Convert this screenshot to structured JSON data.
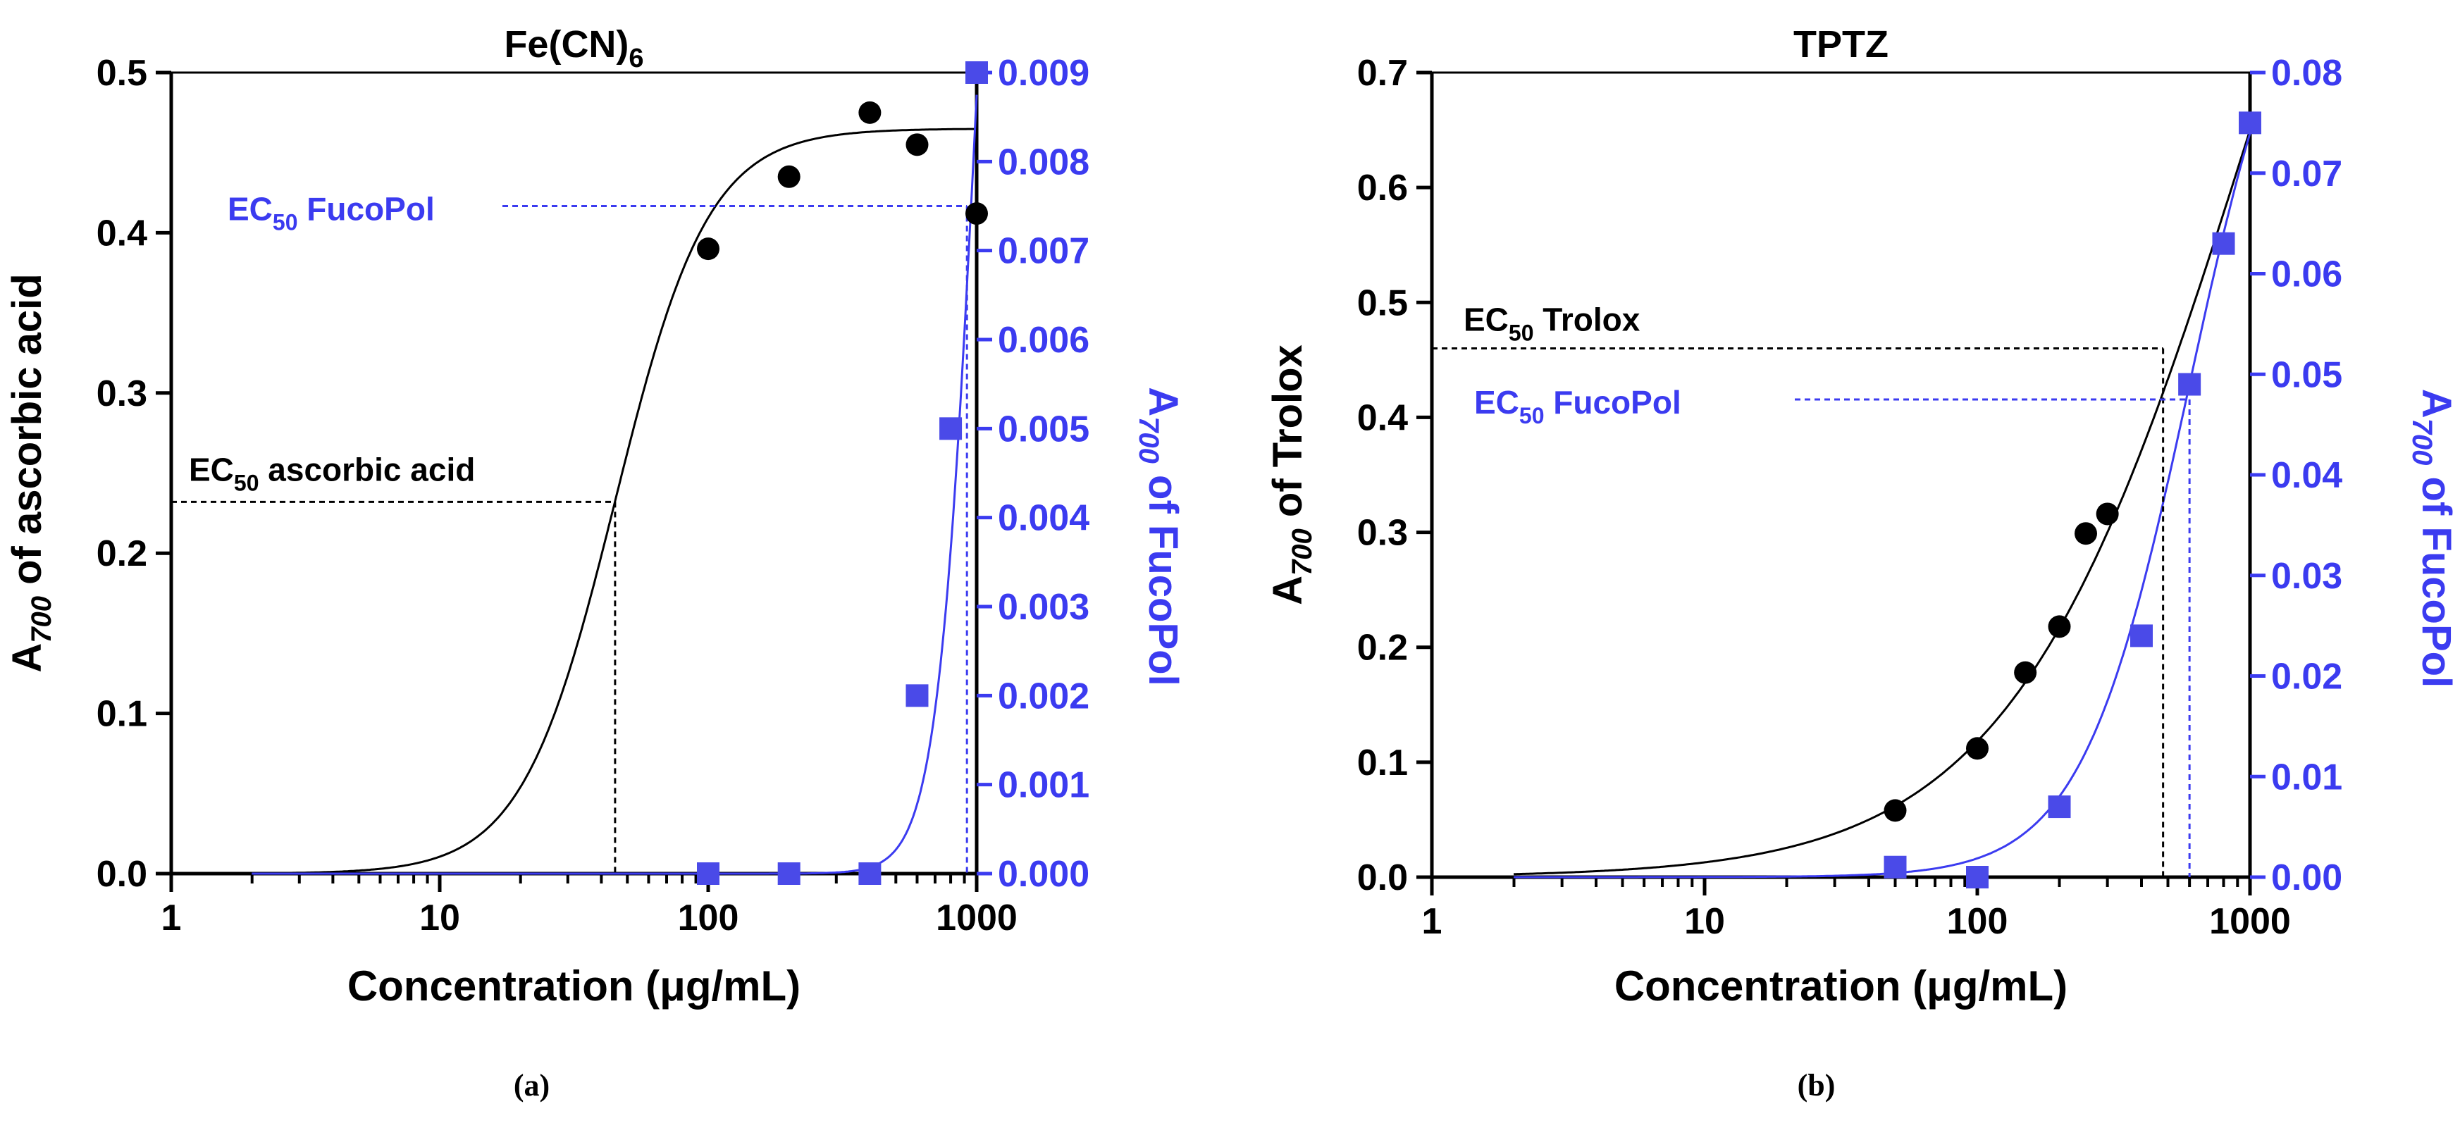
{
  "colors": {
    "primary": "#000000",
    "secondary": "#3b3bf0",
    "marker_secondary": "#4a4ae8"
  },
  "chart_data": [
    {
      "id": "a",
      "type": "scatter",
      "caption": "(a)",
      "title": "Fe(CN)",
      "title_sub": "6",
      "xlabel": "Concentration (μg/mL)",
      "xscale": "log",
      "xlim": [
        1,
        1000
      ],
      "xticks": [
        "1",
        "10",
        "100",
        "1000"
      ],
      "left_axis": {
        "label_main": "A",
        "label_sub": "700",
        "label_rest": " of ascorbic acid",
        "ylim": [
          0,
          0.5
        ],
        "ticks": [
          "0.0",
          "0.1",
          "0.2",
          "0.3",
          "0.4",
          "0.5"
        ]
      },
      "right_axis": {
        "label_main": "A",
        "label_sub": "700",
        "label_rest": " of FucoPol",
        "ylim": [
          0,
          0.009
        ],
        "ticks": [
          "0.000",
          "0.001",
          "0.002",
          "0.003",
          "0.004",
          "0.005",
          "0.006",
          "0.007",
          "0.008",
          "0.009"
        ]
      },
      "series": [
        {
          "name": "ascorbic acid",
          "axis": "left",
          "marker": "circle",
          "x": [
            100,
            200,
            400,
            600,
            1000
          ],
          "y": [
            0.39,
            0.435,
            0.475,
            0.455,
            0.412
          ],
          "fit": {
            "model": "logistic",
            "top": 0.465,
            "ec50": 45,
            "hill": 2.5
          }
        },
        {
          "name": "FucoPol",
          "axis": "right",
          "marker": "square",
          "x": [
            100,
            200,
            400,
            600,
            800,
            1000
          ],
          "y": [
            0.0,
            0.0,
            0.0,
            0.002,
            0.005,
            0.009
          ],
          "fit": {
            "model": "logistic",
            "top": 0.0175,
            "ec50": 1000,
            "hill": 6
          }
        }
      ],
      "annotations": [
        {
          "label_main": "EC",
          "label_sub": "50",
          "label_rest": " ascorbic acid",
          "axis": "left",
          "x": 45,
          "y": 0.232
        },
        {
          "label_main": "EC",
          "label_sub": "50",
          "label_rest": " FucoPol",
          "axis": "right",
          "x": 920,
          "y": 0.0075
        }
      ]
    },
    {
      "id": "b",
      "type": "scatter",
      "caption": "(b)",
      "title": "TPTZ",
      "title_sub": "",
      "xlabel": "Concentration (μg/mL)",
      "xscale": "log",
      "xlim": [
        1,
        1000
      ],
      "xticks": [
        "1",
        "10",
        "100",
        "1000"
      ],
      "left_axis": {
        "label_main": "A",
        "label_sub": "700",
        "label_rest": " of Trolox",
        "ylim": [
          0,
          0.7
        ],
        "ticks": [
          "0.0",
          "0.1",
          "0.2",
          "0.3",
          "0.4",
          "0.5",
          "0.6",
          "0.7"
        ]
      },
      "right_axis": {
        "label_main": "A",
        "label_sub": "700",
        "label_rest": " of FucoPol",
        "ylim": [
          0,
          0.08
        ],
        "ticks": [
          "0.00",
          "0.01",
          "0.02",
          "0.03",
          "0.04",
          "0.05",
          "0.06",
          "0.07",
          "0.08"
        ]
      },
      "series": [
        {
          "name": "Trolox",
          "axis": "left",
          "marker": "circle",
          "x": [
            50,
            100,
            150,
            200,
            250,
            300
          ],
          "y": [
            0.058,
            0.112,
            0.178,
            0.218,
            0.299,
            0.316
          ],
          "fit": {
            "model": "logistic",
            "top": 1.3,
            "ec50": 1000,
            "hill": 1
          }
        },
        {
          "name": "FucoPol",
          "axis": "right",
          "marker": "square",
          "x": [
            50,
            100,
            200,
            400,
            600,
            800,
            1000
          ],
          "y": [
            0.001,
            0.0,
            0.007,
            0.024,
            0.049,
            0.063,
            0.075
          ],
          "fit": {
            "model": "logistic",
            "top": 0.098,
            "ec50": 600,
            "hill": 2.2
          }
        }
      ],
      "annotations": [
        {
          "label_main": "EC",
          "label_sub": "50",
          "label_rest": " Trolox",
          "axis": "left",
          "x": 480,
          "y": 0.46
        },
        {
          "label_main": "EC",
          "label_sub": "50",
          "label_rest": " FucoPol",
          "axis": "right",
          "x": 600,
          "y": 0.0475
        }
      ]
    }
  ]
}
